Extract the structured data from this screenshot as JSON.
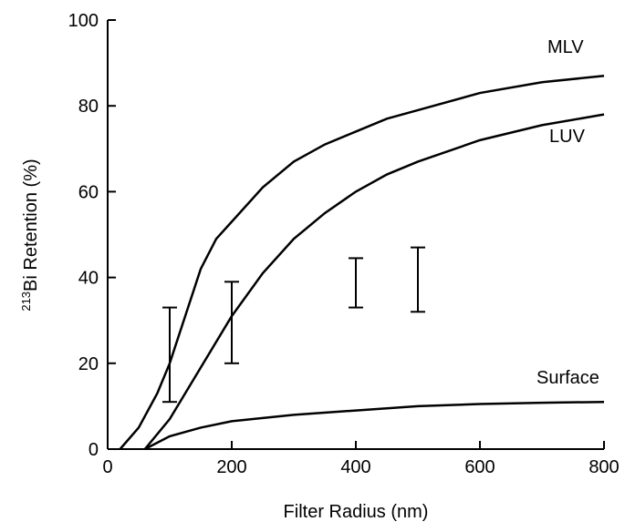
{
  "chart_data": {
    "type": "line",
    "xlabel": "Filter Radius (nm)",
    "ylabel_sup": "213",
    "ylabel": "Bi Retention (%)",
    "xlim": [
      0,
      800
    ],
    "ylim": [
      0,
      100
    ],
    "xticks": [
      0,
      200,
      400,
      600,
      800
    ],
    "yticks": [
      0,
      20,
      40,
      60,
      80,
      100
    ],
    "series": [
      {
        "name": "MLV",
        "color": "#000000",
        "x": [
          20,
          50,
          80,
          100,
          125,
          150,
          175,
          200,
          250,
          300,
          350,
          400,
          450,
          500,
          600,
          700,
          800
        ],
        "values": [
          0,
          5,
          13,
          20,
          31,
          42,
          49,
          53,
          61,
          67,
          71,
          74,
          77,
          79,
          83,
          85.5,
          87
        ]
      },
      {
        "name": "LUV",
        "color": "#000000",
        "x": [
          60,
          100,
          150,
          200,
          250,
          300,
          350,
          400,
          450,
          500,
          600,
          700,
          800
        ],
        "values": [
          0,
          7,
          19,
          31,
          41,
          49,
          55,
          60,
          64,
          67,
          72,
          75.5,
          78
        ]
      },
      {
        "name": "Surface",
        "color": "#000000",
        "x": [
          60,
          100,
          150,
          200,
          300,
          400,
          500,
          600,
          700,
          800
        ],
        "values": [
          0,
          3,
          5,
          6.5,
          8,
          9,
          10,
          10.5,
          10.8,
          11
        ]
      }
    ],
    "error_bars": {
      "x": [
        100,
        200,
        400,
        500
      ],
      "low": [
        11,
        20,
        33,
        32
      ],
      "high": [
        33,
        39,
        44.5,
        47
      ]
    }
  }
}
